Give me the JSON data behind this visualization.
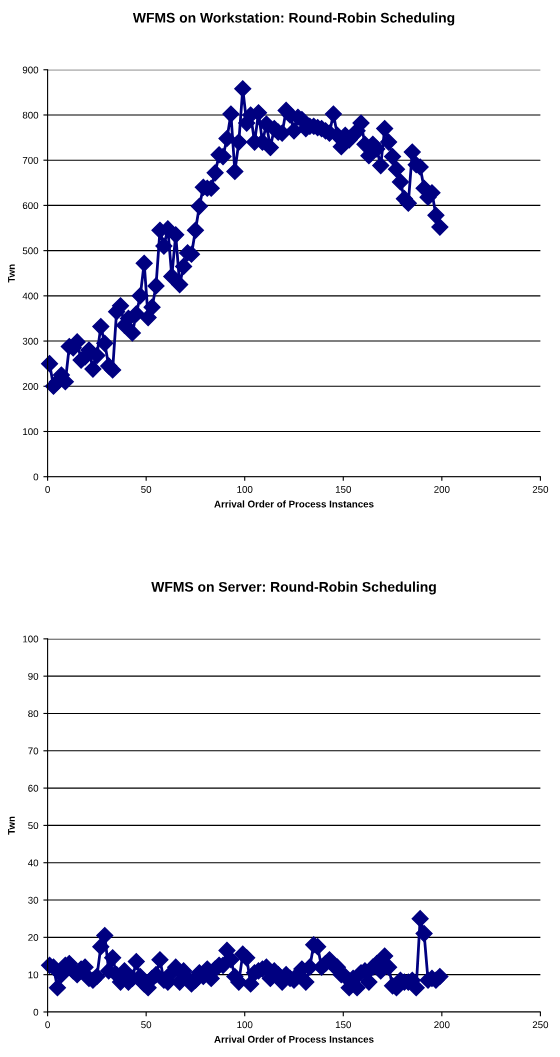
{
  "chart_data": [
    {
      "type": "line",
      "title": "WFMS on Workstation: Round-Robin Scheduling",
      "xlabel": "Arrival Order of Process Instances",
      "ylabel": "Twn",
      "marker": "diamond",
      "line_style": "solid",
      "grid": "y",
      "legend": false,
      "xlim": [
        0,
        250
      ],
      "xticks": [
        0,
        50,
        100,
        150,
        200,
        250
      ],
      "ylim": [
        0,
        900
      ],
      "yticks": [
        0,
        100,
        200,
        300,
        400,
        500,
        600,
        700,
        800,
        900
      ],
      "series": [
        {
          "color": "#000080",
          "x": [
            1,
            3,
            5,
            7,
            9,
            11,
            13,
            15,
            17,
            19,
            21,
            23,
            25,
            27,
            29,
            31,
            33,
            35,
            37,
            39,
            41,
            43,
            45,
            47,
            49,
            51,
            53,
            55,
            57,
            59,
            61,
            63,
            65,
            67,
            69,
            71,
            73,
            75,
            77,
            79,
            81,
            83,
            85,
            87,
            89,
            91,
            93,
            95,
            97,
            99,
            101,
            103,
            105,
            107,
            109,
            111,
            113,
            115,
            117,
            119,
            121,
            123,
            125,
            127,
            129,
            131,
            133,
            135,
            137,
            139,
            141,
            143,
            145,
            147,
            149,
            151,
            153,
            155,
            157,
            159,
            161,
            163,
            165,
            167,
            169,
            171,
            173,
            175,
            177,
            179,
            181,
            183,
            185,
            187,
            189,
            191,
            193,
            195,
            197,
            199
          ],
          "values": [
            250,
            200,
            210,
            225,
            210,
            288,
            285,
            298,
            258,
            265,
            280,
            238,
            268,
            332,
            295,
            245,
            236,
            365,
            378,
            335,
            350,
            318,
            360,
            400,
            472,
            352,
            375,
            422,
            545,
            510,
            548,
            443,
            535,
            425,
            465,
            495,
            492,
            545,
            598,
            640,
            638,
            638,
            672,
            712,
            708,
            748,
            802,
            675,
            740,
            858,
            782,
            800,
            740,
            805,
            740,
            780,
            728,
            770,
            762,
            760,
            810,
            800,
            765,
            795,
            790,
            770,
            775,
            775,
            772,
            770,
            765,
            760,
            802,
            755,
            730,
            755,
            745,
            755,
            765,
            782,
            735,
            710,
            735,
            725,
            688,
            770,
            740,
            708,
            680,
            652,
            615,
            605,
            718,
            690,
            685,
            638,
            618,
            628,
            578,
            552
          ]
        }
      ]
    },
    {
      "type": "line",
      "title": "WFMS on Server: Round-Robin Scheduling",
      "xlabel": "Arrival Order of Process Instances",
      "ylabel": "Twn",
      "marker": "diamond",
      "line_style": "solid",
      "grid": "y",
      "legend": false,
      "xlim": [
        0,
        250
      ],
      "xticks": [
        0,
        50,
        100,
        150,
        200,
        250
      ],
      "ylim": [
        0,
        100
      ],
      "yticks": [
        0,
        10,
        20,
        30,
        40,
        50,
        60,
        70,
        80,
        90,
        100
      ],
      "series": [
        {
          "color": "#000080",
          "x": [
            1,
            3,
            5,
            7,
            9,
            11,
            13,
            15,
            17,
            19,
            21,
            23,
            25,
            27,
            29,
            31,
            33,
            35,
            37,
            39,
            41,
            43,
            45,
            47,
            49,
            51,
            53,
            55,
            57,
            59,
            61,
            63,
            65,
            67,
            69,
            71,
            73,
            75,
            77,
            79,
            81,
            83,
            85,
            87,
            89,
            91,
            93,
            95,
            97,
            99,
            101,
            103,
            105,
            107,
            109,
            111,
            113,
            115,
            117,
            119,
            121,
            123,
            125,
            127,
            129,
            131,
            133,
            135,
            137,
            139,
            141,
            143,
            145,
            147,
            149,
            151,
            153,
            155,
            157,
            159,
            161,
            163,
            165,
            167,
            169,
            171,
            173,
            175,
            177,
            179,
            181,
            183,
            185,
            187,
            189,
            191,
            193,
            195,
            197,
            199
          ],
          "values": [
            12.5,
            12,
            6.5,
            10,
            12.5,
            13,
            11,
            10,
            11.5,
            12,
            9,
            8.5,
            9.5,
            17.5,
            20.5,
            11,
            14.5,
            10,
            8,
            11,
            8,
            9,
            13.5,
            9.5,
            7.5,
            6.5,
            9,
            10,
            14,
            8.5,
            8,
            10.5,
            12,
            8,
            11,
            9,
            7.5,
            8.5,
            10.5,
            9.5,
            11.5,
            9,
            11.5,
            12.5,
            12.5,
            16.5,
            14,
            9.5,
            8,
            15.5,
            14.5,
            7.5,
            10.5,
            11,
            11.5,
            12,
            9,
            11,
            10,
            8,
            10,
            9,
            8.5,
            10,
            11.5,
            8,
            12,
            18,
            17.5,
            12,
            13,
            14,
            12.5,
            12,
            10,
            9.5,
            6.5,
            9,
            6.5,
            10.5,
            11,
            8,
            12,
            13,
            11,
            15,
            12,
            7,
            6.5,
            8.5,
            8,
            8,
            8.5,
            6.5,
            25,
            21,
            8.5,
            9,
            8.5,
            9.5
          ]
        }
      ]
    }
  ]
}
